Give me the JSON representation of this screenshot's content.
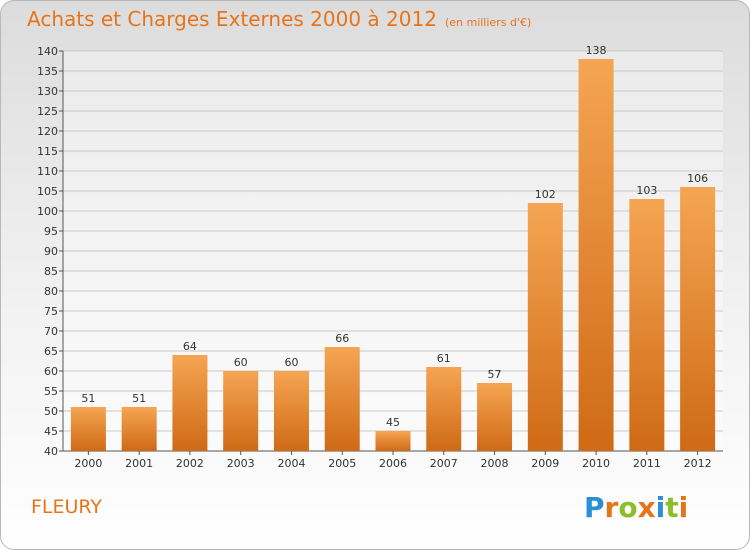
{
  "header": {
    "title": "Achats et Charges Externes 2000 à 2012",
    "unit": "(en milliers d'€)"
  },
  "footer": {
    "commune": "FLEURY"
  },
  "logo": {
    "letters": [
      "P",
      "r",
      "o",
      "x",
      "i",
      "t",
      "i"
    ],
    "colors": [
      "#2b8fd6",
      "#e8741a",
      "#8bbf2a",
      "#e8741a",
      "#2b8fd6",
      "#8bbf2a",
      "#e8741a"
    ]
  },
  "colors": {
    "accent": "#e8741a",
    "bar_top": "#f5a552",
    "bar_bottom": "#cf6a16"
  },
  "chart_data": {
    "type": "bar",
    "categories": [
      "2000",
      "2001",
      "2002",
      "2003",
      "2004",
      "2005",
      "2006",
      "2007",
      "2008",
      "2009",
      "2010",
      "2011",
      "2012"
    ],
    "values": [
      51,
      51,
      64,
      60,
      60,
      66,
      45,
      61,
      57,
      102,
      138,
      103,
      106
    ],
    "ylim": [
      40,
      140
    ],
    "yticks": [
      40,
      45,
      50,
      55,
      60,
      65,
      70,
      75,
      80,
      85,
      90,
      95,
      100,
      105,
      110,
      115,
      120,
      125,
      130,
      135,
      140
    ],
    "grid": true
  }
}
